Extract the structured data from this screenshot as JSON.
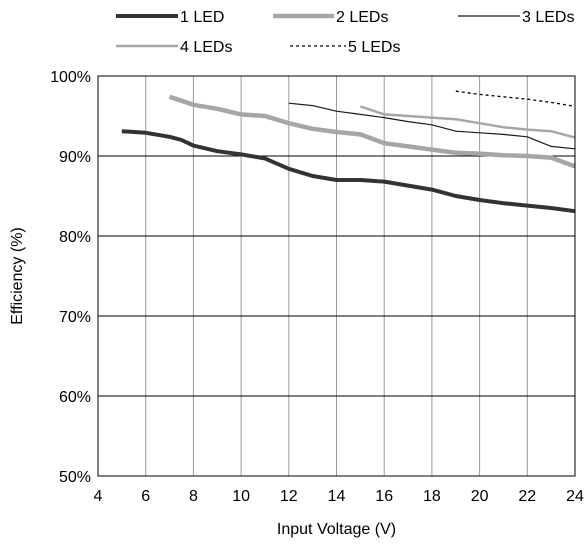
{
  "chart_data": {
    "type": "line",
    "title": "",
    "xlabel": "Input Voltage (V)",
    "ylabel": "Efficiency (%)",
    "xlim": [
      4,
      24
    ],
    "ylim": [
      50,
      100
    ],
    "xticks": [
      4,
      6,
      8,
      10,
      12,
      14,
      16,
      18,
      20,
      22,
      24
    ],
    "xtick_labels": [
      "4",
      "6",
      "8",
      "10",
      "12",
      "14",
      "16",
      "18",
      "20",
      "22",
      "24"
    ],
    "yticks": [
      50,
      60,
      70,
      80,
      90,
      100
    ],
    "ytick_labels": [
      "50%",
      "60%",
      "70%",
      "80%",
      "90%",
      "100%"
    ],
    "grid": {
      "vertical": true,
      "horizontal": true
    },
    "legend_position": "top",
    "series": [
      {
        "name": "1 LED",
        "style": "thick-dark",
        "color": "#333333",
        "x": [
          5,
          6,
          7,
          7.5,
          8,
          9,
          10,
          11,
          12,
          13,
          14,
          15,
          16,
          17,
          18,
          19,
          20,
          21,
          22,
          23,
          24
        ],
        "y": [
          93.1,
          92.9,
          92.4,
          92.0,
          91.3,
          90.6,
          90.2,
          89.7,
          88.4,
          87.5,
          87.0,
          87.0,
          86.8,
          86.3,
          85.8,
          85.0,
          84.5,
          84.1,
          83.8,
          83.5,
          83.1
        ]
      },
      {
        "name": "2 LEDs",
        "style": "thick-gray",
        "color": "#a6a6a6",
        "x": [
          7,
          8,
          9,
          10,
          11,
          12,
          13,
          14,
          15,
          16,
          17,
          18,
          19,
          20,
          21,
          22,
          23,
          24
        ],
        "y": [
          97.4,
          96.4,
          95.9,
          95.2,
          95.0,
          94.1,
          93.4,
          93.0,
          92.7,
          91.6,
          91.2,
          90.8,
          90.4,
          90.3,
          90.1,
          90.0,
          89.8,
          88.7
        ]
      },
      {
        "name": "3 LEDs",
        "style": "thin-dark",
        "color": "#1a1a1a",
        "x": [
          12,
          13,
          14,
          15,
          16,
          17,
          18,
          19,
          20,
          21,
          22,
          23,
          24
        ],
        "y": [
          96.6,
          96.3,
          95.6,
          95.2,
          94.8,
          94.3,
          93.9,
          93.1,
          92.9,
          92.7,
          92.4,
          91.2,
          90.9
        ]
      },
      {
        "name": "4 LEDs",
        "style": "medium-gray",
        "color": "#a6a6a6",
        "x": [
          15,
          16,
          17,
          18,
          19,
          20,
          21,
          22,
          23,
          24
        ],
        "y": [
          96.2,
          95.2,
          95.0,
          94.8,
          94.6,
          94.1,
          93.6,
          93.3,
          93.1,
          92.3
        ]
      },
      {
        "name": "5 LEDs",
        "style": "dotted-dark",
        "color": "#000000",
        "x": [
          19,
          20,
          21,
          22,
          23,
          24
        ],
        "y": [
          98.1,
          97.7,
          97.4,
          97.1,
          96.7,
          96.2
        ]
      }
    ]
  }
}
